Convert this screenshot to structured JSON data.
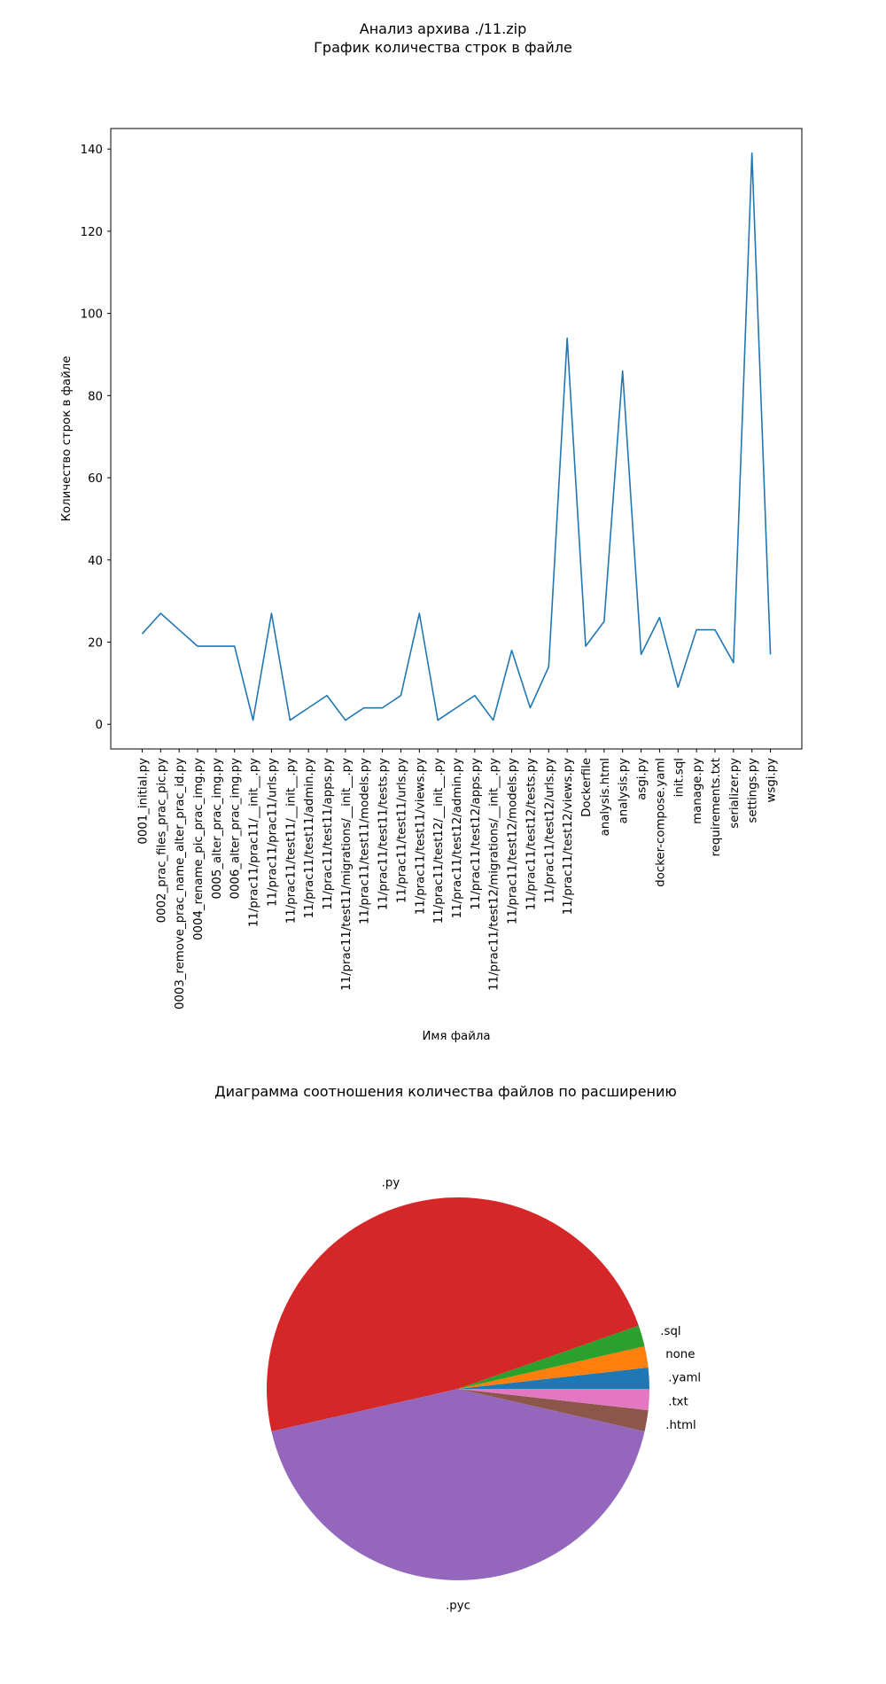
{
  "figure": {
    "suptitle_line1": "Анализ архива ./11.zip",
    "suptitle_line2": "График количества строк в файле"
  },
  "chart_data": [
    {
      "type": "line",
      "title": "",
      "xlabel": "Имя файла",
      "ylabel": "Количество строк в файле",
      "ylim": [
        -6,
        145
      ],
      "yticks": [
        0,
        20,
        40,
        60,
        80,
        100,
        120,
        140
      ],
      "grid": false,
      "color": "#1f77b4",
      "categories": [
        "0001_initial.py",
        "0002_prac_files_prac_pic.py",
        "0003_remove_prac_name_alter_prac_id.py",
        "0004_rename_pic_prac_img.py",
        "0005_alter_prac_img.py",
        "0006_alter_prac_img.py",
        "11/prac11/prac11/__init__.py",
        "11/prac11/prac11/urls.py",
        "11/prac11/test11/__init__.py",
        "11/prac11/test11/admin.py",
        "11/prac11/test11/apps.py",
        "11/prac11/test11/migrations/__init__.py",
        "11/prac11/test11/models.py",
        "11/prac11/test11/tests.py",
        "11/prac11/test11/urls.py",
        "11/prac11/test11/views.py",
        "11/prac11/test12/__init__.py",
        "11/prac11/test12/admin.py",
        "11/prac11/test12/apps.py",
        "11/prac11/test12/migrations/__init__.py",
        "11/prac11/test12/models.py",
        "11/prac11/test12/tests.py",
        "11/prac11/test12/urls.py",
        "11/prac11/test12/views.py",
        "Dockerfile",
        "analysis.html",
        "analysis.py",
        "asgi.py",
        "docker-compose.yaml",
        "init.sql",
        "manage.py",
        "requirements.txt",
        "serializer.py",
        "settings.py",
        "wsgi.py"
      ],
      "values": [
        22,
        27,
        23,
        19,
        19,
        19,
        1,
        27,
        1,
        4,
        7,
        1,
        4,
        4,
        7,
        27,
        1,
        4,
        7,
        1,
        18,
        4,
        14,
        94,
        19,
        25,
        86,
        17,
        26,
        9,
        23,
        23,
        15,
        139,
        17
      ]
    },
    {
      "type": "pie",
      "title": "Диаграмма соотношения количества файлов по расширению",
      "startangle_deg": 0,
      "counterclock": true,
      "slices": [
        {
          "label": ".yaml",
          "value": 1,
          "color": "#1f77b4"
        },
        {
          "label": "none",
          "value": 1,
          "color": "#ff7f0e"
        },
        {
          "label": ".sql",
          "value": 1,
          "color": "#2ca02c"
        },
        {
          "label": ".py",
          "value": 27,
          "color": "#d62728"
        },
        {
          "label": ".pyc",
          "value": 24,
          "color": "#9467bd"
        },
        {
          "label": ".html",
          "value": 1,
          "color": "#8c564b"
        },
        {
          "label": ".txt",
          "value": 1,
          "color": "#e377c2"
        }
      ]
    }
  ]
}
